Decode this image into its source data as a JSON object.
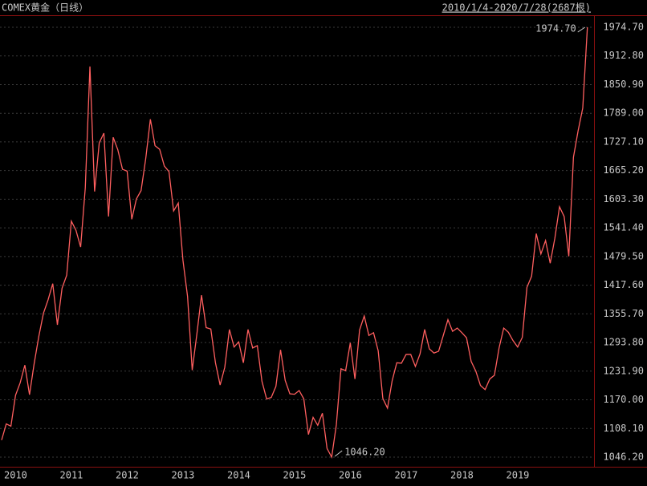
{
  "chart_data": {
    "type": "line",
    "title": "COMEX黄金（日线）",
    "subtitle": "2010/1/4-2020/7/28(2687根)",
    "annotations": [
      "1974.70",
      "1046.20"
    ],
    "categories": [
      "2010",
      null,
      null,
      null,
      null,
      null,
      null,
      null,
      null,
      null,
      null,
      null,
      "2011",
      null,
      null,
      null,
      null,
      null,
      null,
      null,
      null,
      null,
      null,
      null,
      "2012",
      null,
      null,
      null,
      null,
      null,
      null,
      null,
      null,
      null,
      null,
      null,
      "2013",
      null,
      null,
      null,
      null,
      null,
      null,
      null,
      null,
      null,
      null,
      null,
      "2014",
      null,
      null,
      null,
      null,
      null,
      null,
      null,
      null,
      null,
      null,
      null,
      "2015",
      null,
      null,
      null,
      null,
      null,
      null,
      null,
      null,
      null,
      null,
      null,
      "2016",
      null,
      null,
      null,
      null,
      null,
      null,
      null,
      null,
      null,
      null,
      null,
      "2017",
      null,
      null,
      null,
      null,
      null,
      null,
      null,
      null,
      null,
      null,
      null,
      "2018",
      null,
      null,
      null,
      null,
      null,
      null,
      null,
      null,
      null,
      null,
      null,
      "2019",
      null,
      null,
      null,
      null,
      null,
      null,
      null,
      null,
      null,
      null,
      null,
      null,
      null,
      null,
      null,
      null,
      null,
      null
    ],
    "series": [
      {
        "name": "COMEX黄金",
        "color": "#ff5f5f",
        "values": [
          1083,
          1118,
          1113,
          1180,
          1207,
          1245,
          1181,
          1248,
          1307,
          1357,
          1386,
          1421,
          1332,
          1411,
          1439,
          1556,
          1536,
          1500,
          1628,
          1890,
          1620,
          1725,
          1746,
          1566,
          1737,
          1710,
          1668,
          1664,
          1560,
          1604,
          1622,
          1691,
          1776,
          1719,
          1711,
          1675,
          1663,
          1578,
          1595,
          1472,
          1393,
          1234,
          1312,
          1396,
          1326,
          1323,
          1250,
          1202,
          1240,
          1322,
          1284,
          1295,
          1250,
          1322,
          1282,
          1287,
          1210,
          1172,
          1175,
          1199,
          1278,
          1212,
          1183,
          1182,
          1190,
          1172,
          1095,
          1132,
          1115,
          1141,
          1065,
          1046.2,
          1116,
          1237,
          1233,
          1293,
          1215,
          1321,
          1351,
          1309,
          1315,
          1276,
          1173,
          1152,
          1211,
          1250,
          1249,
          1268,
          1268,
          1242,
          1269,
          1322,
          1280,
          1271,
          1275,
          1309,
          1343,
          1318,
          1325,
          1315,
          1304,
          1253,
          1232,
          1201,
          1192,
          1215,
          1223,
          1282,
          1325,
          1316,
          1298,
          1284,
          1305,
          1413,
          1437,
          1529,
          1485,
          1514,
          1465,
          1519,
          1587,
          1566,
          1480,
          1694,
          1751,
          1800,
          1974.7
        ]
      }
    ],
    "ylim": [
      1046.2,
      1974.7
    ],
    "yticks": [
      {
        "value": 1046.2,
        "label": "1046.20"
      },
      {
        "value": 1108.1,
        "label": "1108.10"
      },
      {
        "value": 1170,
        "label": "1170.00"
      },
      {
        "value": 1231.9,
        "label": "1231.90"
      },
      {
        "value": 1293.8,
        "label": "1293.80"
      },
      {
        "value": 1355.7,
        "label": "1355.70"
      },
      {
        "value": 1417.6,
        "label": "1417.60"
      },
      {
        "value": 1479.5,
        "label": "1479.50"
      },
      {
        "value": 1541.4,
        "label": "1541.40"
      },
      {
        "value": 1603.3,
        "label": "1603.30"
      },
      {
        "value": 1665.2,
        "label": "1665.20"
      },
      {
        "value": 1727.1,
        "label": "1727.10"
      },
      {
        "value": 1789,
        "label": "1789.00"
      },
      {
        "value": 1850.9,
        "label": "1850.90"
      },
      {
        "value": 1912.8,
        "label": "1912.80"
      },
      {
        "value": 1974.7,
        "label": "1974.70"
      }
    ],
    "grid": true
  }
}
